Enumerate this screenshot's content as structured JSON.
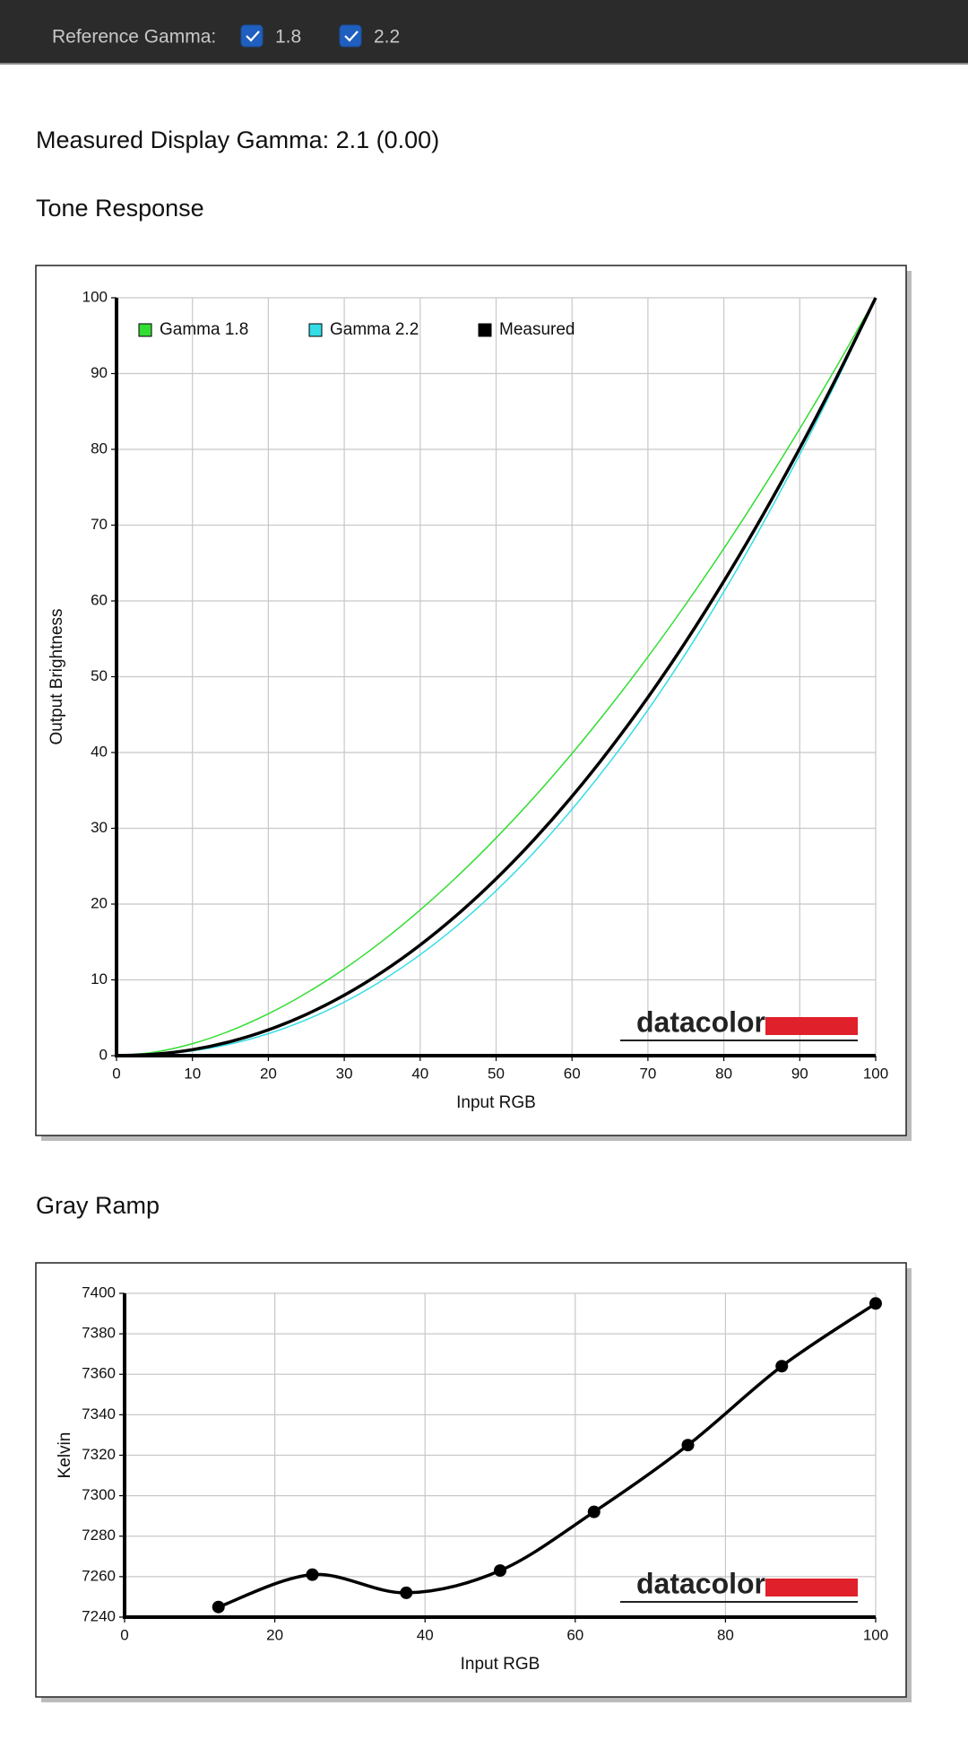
{
  "toolbar": {
    "label": "Reference Gamma:",
    "options": [
      {
        "label": "1.8",
        "checked": true
      },
      {
        "label": "2.2",
        "checked": true
      }
    ]
  },
  "heading": "Measured Display Gamma: 2.1 (0.00)",
  "chart_data": [
    {
      "type": "line",
      "title": "Tone Response",
      "xlabel": "Input RGB",
      "ylabel": "Output Brightness",
      "watermark": "datacolor",
      "x": [
        0,
        5,
        10,
        15,
        20,
        25,
        30,
        35,
        40,
        45,
        50,
        55,
        60,
        65,
        70,
        75,
        80,
        85,
        90,
        95,
        100
      ],
      "series": [
        {
          "name": "Gamma 1.8",
          "color": "#33dd33",
          "width": 1.5,
          "values": [
            0,
            0.46,
            1.58,
            3.29,
            5.52,
            8.25,
            11.45,
            15.11,
            19.22,
            23.76,
            28.72,
            34.09,
            39.87,
            46.05,
            52.62,
            59.58,
            66.92,
            74.64,
            82.72,
            91.18,
            100
          ]
        },
        {
          "name": "Gamma 2.2",
          "color": "#33dde6",
          "width": 1.5,
          "values": [
            0,
            0.14,
            0.63,
            1.54,
            2.9,
            4.74,
            7.07,
            9.93,
            13.32,
            17.26,
            21.76,
            26.84,
            32.51,
            38.76,
            45.62,
            53.1,
            61.21,
            69.94,
            79.31,
            89.33,
            100
          ]
        },
        {
          "name": "Measured",
          "color": "#000000",
          "width": 3.5,
          "values": [
            0,
            0.19,
            0.79,
            1.86,
            3.4,
            5.44,
            7.98,
            11.03,
            14.6,
            18.7,
            23.33,
            28.5,
            34.21,
            40.47,
            47.28,
            54.65,
            62.6,
            71.08,
            80.15,
            89.79,
            100
          ]
        }
      ],
      "xlim": [
        0,
        100
      ],
      "xticks": [
        0,
        10,
        20,
        30,
        40,
        50,
        60,
        70,
        80,
        90,
        100
      ],
      "ylim": [
        0,
        100
      ],
      "yticks": [
        0,
        10,
        20,
        30,
        40,
        50,
        60,
        70,
        80,
        90,
        100
      ],
      "grid": true,
      "legend": "upper left",
      "markers": false
    },
    {
      "type": "line",
      "title": "Gray Ramp",
      "xlabel": "Input RGB",
      "ylabel": "Kelvin",
      "watermark": "datacolor",
      "x": [
        12.5,
        25,
        37.5,
        50,
        62.5,
        75,
        87.5,
        100
      ],
      "series": [
        {
          "color": "#000000",
          "width": 3.5,
          "values": [
            7245,
            7261,
            7252,
            7263,
            7292,
            7325,
            7364,
            7395
          ]
        }
      ],
      "xlim": [
        0,
        100
      ],
      "xticks": [
        0,
        20,
        40,
        60,
        80,
        100
      ],
      "ylim": [
        7240,
        7400
      ],
      "yticks": [
        7240,
        7260,
        7280,
        7300,
        7320,
        7340,
        7360,
        7380,
        7400
      ],
      "grid": true,
      "markers": true
    }
  ]
}
